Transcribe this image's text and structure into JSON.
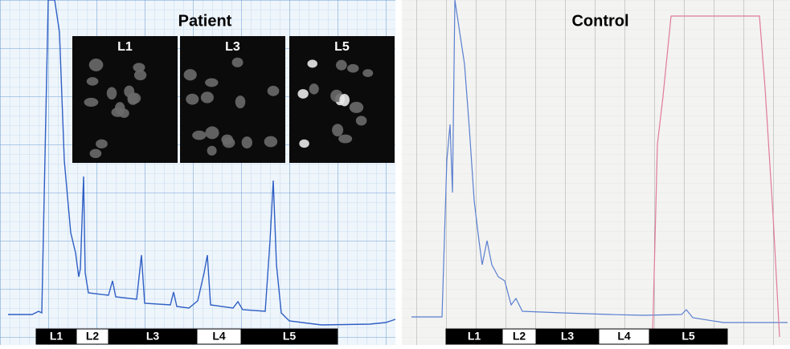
{
  "patient": {
    "title": "Patient",
    "images": [
      "L1",
      "L3",
      "L5"
    ],
    "fractions": [
      "L1",
      "L2",
      "L3",
      "L4",
      "L5"
    ]
  },
  "control": {
    "title": "Control",
    "fractions": [
      "L1",
      "L2",
      "L3",
      "L4",
      "L5"
    ]
  }
}
